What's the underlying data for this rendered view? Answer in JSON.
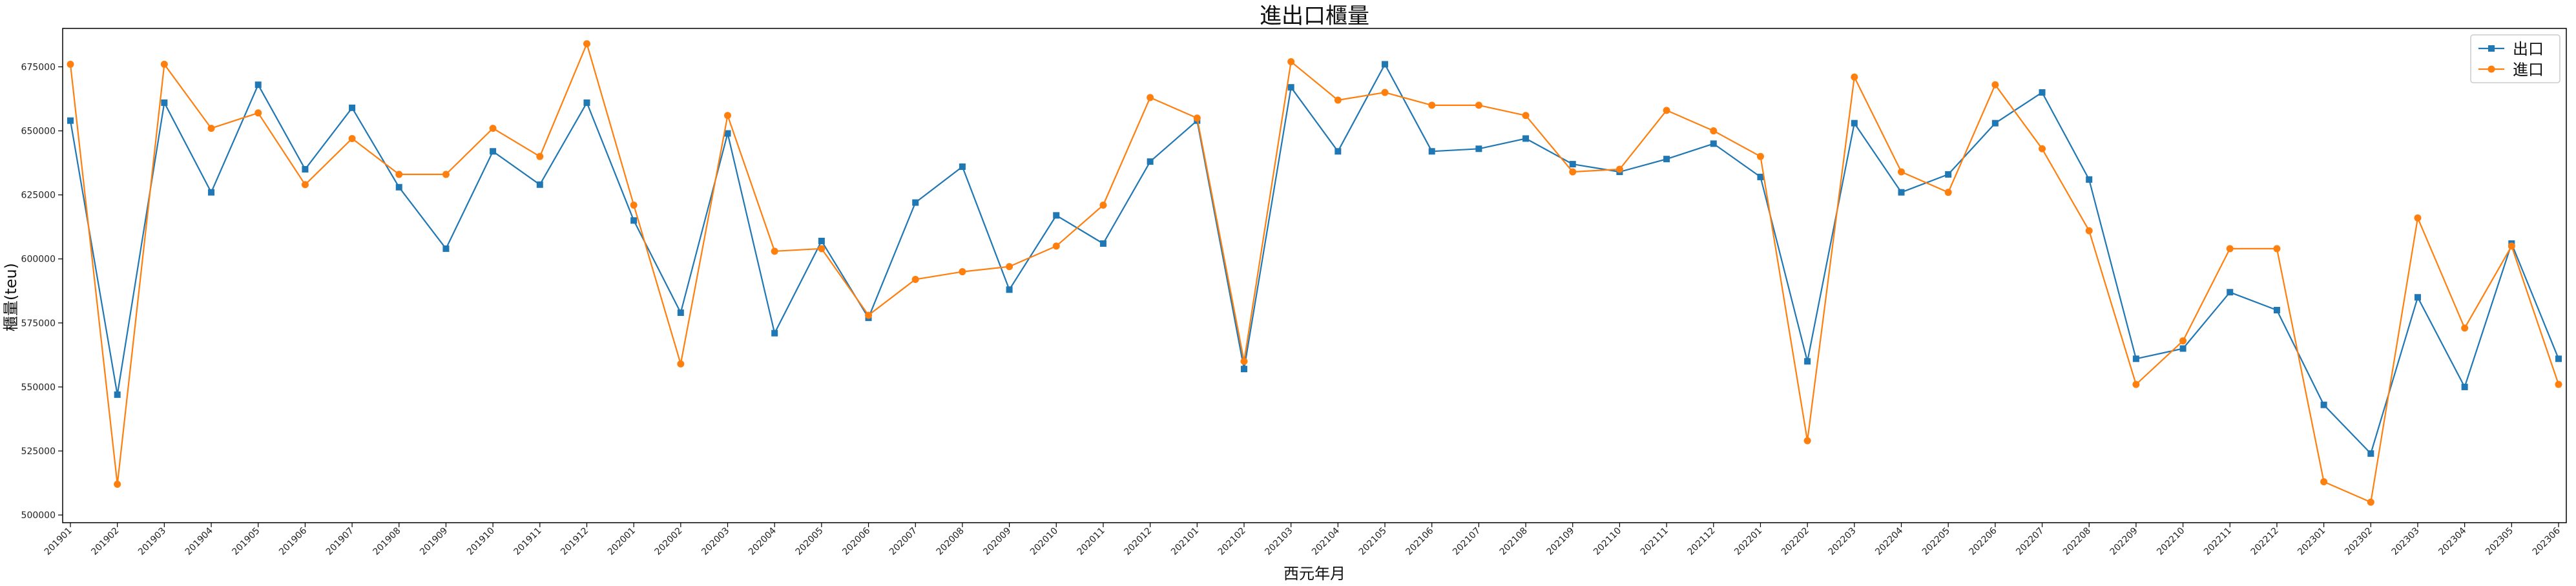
{
  "chart_data": {
    "type": "line",
    "title": "進出口櫃量",
    "xlabel": "西元年月",
    "ylabel": "櫃量(teu)",
    "ylim": [
      497000,
      690000
    ],
    "yticks": [
      500000,
      525000,
      550000,
      575000,
      600000,
      625000,
      650000,
      675000
    ],
    "ytick_labels": [
      "500000",
      "525000",
      "550000",
      "575000",
      "600000",
      "625000",
      "650000",
      "675000"
    ],
    "legend_position": "top-right",
    "grid": false,
    "categories": [
      "201901",
      "201902",
      "201903",
      "201904",
      "201905",
      "201906",
      "201907",
      "201908",
      "201909",
      "201910",
      "201911",
      "201912",
      "202001",
      "202002",
      "202003",
      "202004",
      "202005",
      "202006",
      "202007",
      "202008",
      "202009",
      "202010",
      "202011",
      "202012",
      "202101",
      "202102",
      "202103",
      "202104",
      "202105",
      "202106",
      "202107",
      "202108",
      "202109",
      "202110",
      "202111",
      "202112",
      "202201",
      "202202",
      "202203",
      "202204",
      "202205",
      "202206",
      "202207",
      "202208",
      "202209",
      "202210",
      "202211",
      "202212",
      "202301",
      "202302",
      "202303",
      "202304",
      "202305",
      "202306"
    ],
    "series": [
      {
        "name": "出口",
        "color": "#1f77b4",
        "marker": "square",
        "values": [
          654000,
          547000,
          661000,
          626000,
          668000,
          635000,
          659000,
          628000,
          604000,
          642000,
          629000,
          661000,
          615000,
          579000,
          649000,
          571000,
          607000,
          577000,
          622000,
          636000,
          588000,
          617000,
          606000,
          638000,
          654000,
          557000,
          667000,
          642000,
          676000,
          642000,
          643000,
          647000,
          637000,
          634000,
          639000,
          645000,
          632000,
          560000,
          653000,
          626000,
          633000,
          653000,
          665000,
          631000,
          561000,
          565000,
          587000,
          580000,
          543000,
          524000,
          585000,
          550000,
          606000,
          561000
        ]
      },
      {
        "name": "進口",
        "color": "#ff7f0e",
        "marker": "circle",
        "values": [
          676000,
          512000,
          676000,
          651000,
          657000,
          629000,
          647000,
          633000,
          633000,
          651000,
          640000,
          684000,
          621000,
          559000,
          656000,
          603000,
          604000,
          578000,
          592000,
          595000,
          597000,
          605000,
          621000,
          663000,
          655000,
          560000,
          677000,
          662000,
          665000,
          660000,
          660000,
          656000,
          634000,
          635000,
          658000,
          650000,
          640000,
          529000,
          671000,
          634000,
          626000,
          668000,
          643000,
          611000,
          551000,
          568000,
          604000,
          604000,
          513000,
          505000,
          616000,
          573000,
          605000,
          551000
        ]
      }
    ]
  }
}
